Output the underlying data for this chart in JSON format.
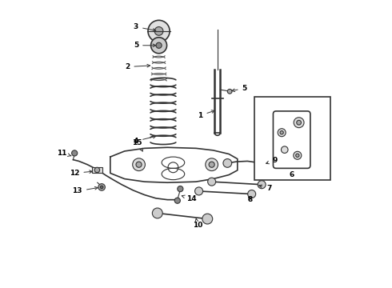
{
  "bg_color": "#ffffff",
  "line_color": "#333333",
  "figsize": [
    4.9,
    3.6
  ],
  "dpi": 100
}
